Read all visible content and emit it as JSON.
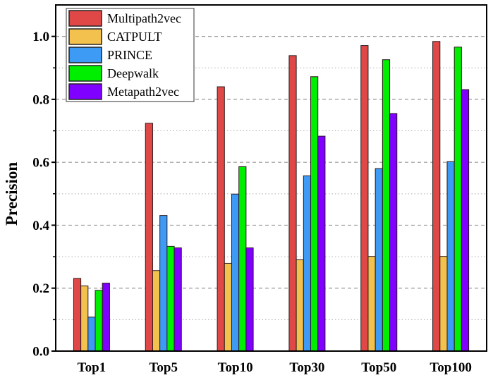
{
  "chart_data": {
    "type": "bar",
    "title": "",
    "xlabel": "",
    "ylabel": "Precision",
    "ylim": [
      0.0,
      1.1
    ],
    "yticks": [
      0.0,
      0.2,
      0.4,
      0.6,
      0.8,
      1.0
    ],
    "ytick_labels": [
      "0.0",
      "0.2",
      "0.4",
      "0.6",
      "0.8",
      "1.0"
    ],
    "minor_gridlines": [
      0.1,
      0.3,
      0.5,
      0.7,
      0.9
    ],
    "grid": true,
    "legend_position": "top-left",
    "categories": [
      "Top1",
      "Top5",
      "Top10",
      "Top30",
      "Top50",
      "Top100"
    ],
    "series": [
      {
        "name": "Multipath2vec",
        "color": "#E04848",
        "values": [
          0.231,
          0.724,
          0.84,
          0.939,
          0.971,
          0.984
        ]
      },
      {
        "name": "CATPULT",
        "color": "#F2C14E",
        "values": [
          0.207,
          0.256,
          0.279,
          0.29,
          0.301,
          0.301
        ]
      },
      {
        "name": "PRINCE",
        "color": "#3D9BF6",
        "values": [
          0.108,
          0.431,
          0.499,
          0.557,
          0.58,
          0.602
        ]
      },
      {
        "name": "Deepwalk",
        "color": "#00EE00",
        "values": [
          0.193,
          0.333,
          0.586,
          0.872,
          0.926,
          0.966
        ]
      },
      {
        "name": "Metapath2vec",
        "color": "#8000FF",
        "values": [
          0.216,
          0.328,
          0.328,
          0.683,
          0.755,
          0.831
        ]
      }
    ]
  }
}
